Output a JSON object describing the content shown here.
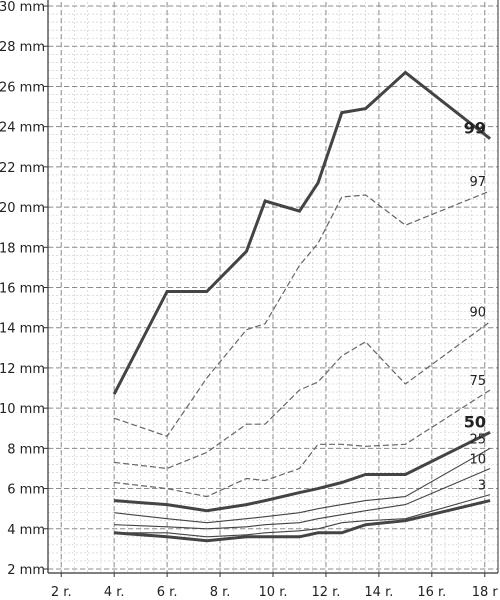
{
  "chart_data": {
    "type": "line",
    "title": "",
    "xlabel": "",
    "ylabel": "",
    "xlim": [
      1.5,
      18.5
    ],
    "ylim": [
      1.8,
      30.2
    ],
    "x_ticks": [
      2,
      4,
      6,
      8,
      10,
      12,
      14,
      16,
      18
    ],
    "x_tick_labels": [
      "2 r.",
      "4 r.",
      "6 r.",
      "8 r.",
      "10 r.",
      "12 r.",
      "14 r.",
      "16 r.",
      "18 r"
    ],
    "y_ticks": [
      2,
      4,
      6,
      8,
      10,
      12,
      14,
      16,
      18,
      20,
      22,
      24,
      26,
      28,
      30
    ],
    "y_tick_labels": [
      "2 mm",
      "4 mm",
      "6 mm",
      "8 mm",
      "10 mm",
      "12 mm",
      "14 mm",
      "16 mm",
      "18 mm",
      "20 mm",
      "22 mm",
      "24 mm",
      "26 mm",
      "28 mm",
      "30 mm"
    ],
    "grid": true,
    "colors": {
      "major_grid": "#8c8c8c",
      "minor_grid": "#c8c8c8",
      "series_dark": "#444444",
      "series_mid": "#666666"
    },
    "series": [
      {
        "name": "99",
        "style": "bold",
        "x": [
          4,
          6,
          7.5,
          9,
          9.7,
          11,
          11.7,
          12.6,
          13.5,
          15,
          18.2
        ],
        "y": [
          10.7,
          15.8,
          15.8,
          17.8,
          20.3,
          19.8,
          21.2,
          24.7,
          24.9,
          26.7,
          23.4
        ]
      },
      {
        "name": "97",
        "style": "dashed",
        "x": [
          4,
          6,
          7.5,
          9,
          9.7,
          11,
          11.7,
          12.6,
          13.5,
          15,
          18.2
        ],
        "y": [
          9.5,
          8.6,
          11.5,
          13.9,
          14.2,
          17.1,
          18.2,
          20.5,
          20.6,
          19.1,
          20.8
        ]
      },
      {
        "name": "90",
        "style": "dashed",
        "x": [
          4,
          6,
          7.5,
          9,
          9.7,
          11,
          11.7,
          12.6,
          13.5,
          15,
          18.2
        ],
        "y": [
          7.3,
          7.0,
          7.8,
          9.2,
          9.2,
          10.9,
          11.3,
          12.6,
          13.3,
          11.2,
          14.3
        ]
      },
      {
        "name": "75",
        "style": "dashed",
        "x": [
          4,
          6,
          7.5,
          9,
          9.7,
          11,
          11.7,
          12.6,
          13.5,
          15,
          18.2
        ],
        "y": [
          6.3,
          6.0,
          5.6,
          6.5,
          6.4,
          7.0,
          8.2,
          8.2,
          8.1,
          8.2,
          10.9
        ]
      },
      {
        "name": "50",
        "style": "bold",
        "x": [
          4,
          6,
          7.5,
          9,
          9.7,
          11,
          11.7,
          12.6,
          13.5,
          15,
          18.2
        ],
        "y": [
          5.4,
          5.2,
          4.9,
          5.2,
          5.4,
          5.8,
          6.0,
          6.3,
          6.7,
          6.7,
          8.8
        ]
      },
      {
        "name": "25",
        "style": "thin",
        "x": [
          4,
          6,
          7.5,
          9,
          9.7,
          11,
          11.7,
          12.6,
          13.5,
          15,
          18.2
        ],
        "y": [
          4.8,
          4.5,
          4.3,
          4.5,
          4.6,
          4.8,
          5.0,
          5.2,
          5.4,
          5.6,
          8.0
        ]
      },
      {
        "name": "10",
        "style": "thin",
        "x": [
          4,
          6,
          7.5,
          9,
          9.7,
          11,
          11.7,
          12.6,
          13.5,
          15,
          18.2
        ],
        "y": [
          4.2,
          4.1,
          4.0,
          4.1,
          4.2,
          4.3,
          4.5,
          4.7,
          4.9,
          5.2,
          7.0
        ]
      },
      {
        "name": "3",
        "style": "thin",
        "x": [
          4,
          6,
          7.5,
          9,
          9.7,
          11,
          11.7,
          12.6,
          13.5,
          15,
          18.2
        ],
        "y": [
          3.8,
          3.8,
          3.6,
          3.7,
          3.8,
          3.9,
          4.0,
          4.3,
          4.4,
          4.5,
          5.7
        ]
      },
      {
        "name": "",
        "style": "bold",
        "x": [
          4,
          6,
          7.5,
          9,
          9.7,
          11,
          11.7,
          12.6,
          13.5,
          15,
          18.2
        ],
        "y": [
          3.8,
          3.6,
          3.4,
          3.6,
          3.6,
          3.6,
          3.8,
          3.8,
          4.2,
          4.4,
          5.4
        ]
      }
    ]
  }
}
